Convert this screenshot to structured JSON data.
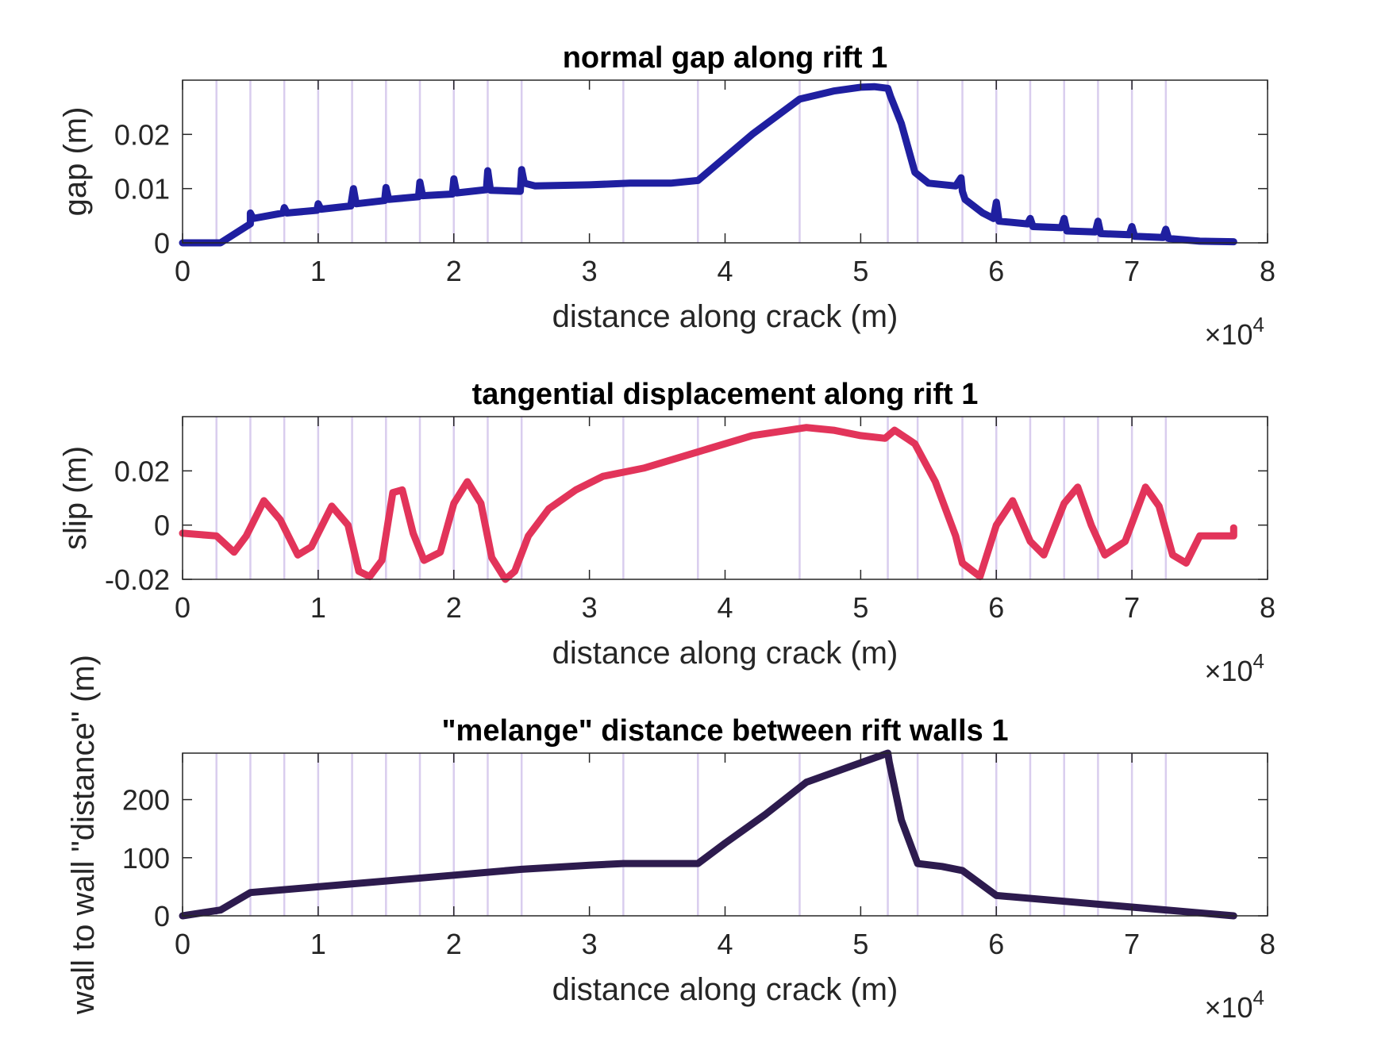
{
  "chart_data": [
    {
      "type": "line",
      "title": "normal gap along rift 1",
      "xlabel": "distance along crack (m)",
      "ylabel": "gap (m)",
      "x_exponent": "×10",
      "x_exponent_power": "4",
      "xlim": [
        0,
        8
      ],
      "ylim": [
        0,
        0.03
      ],
      "xticks": [
        0,
        1,
        2,
        3,
        4,
        5,
        6,
        7,
        8
      ],
      "xtick_labels": [
        "0",
        "1",
        "2",
        "3",
        "4",
        "5",
        "6",
        "7",
        "8"
      ],
      "yticks": [
        0,
        0.01,
        0.02
      ],
      "ytick_labels": [
        "0",
        "0.01",
        "0.02"
      ],
      "vertical_lines": [
        0.25,
        0.5,
        0.75,
        1.0,
        1.25,
        1.5,
        1.75,
        2.0,
        2.25,
        2.5,
        3.25,
        3.8,
        4.55,
        5.2,
        5.42,
        5.75,
        6.0,
        6.25,
        6.5,
        6.75,
        7.0,
        7.25
      ],
      "series": [
        {
          "color": "#1f1fa0",
          "x": [
            0,
            0.28,
            0.5,
            0.5,
            0.52,
            0.74,
            0.75,
            0.77,
            0.99,
            1.0,
            1.02,
            1.24,
            1.26,
            1.28,
            1.49,
            1.5,
            1.52,
            1.74,
            1.75,
            1.77,
            1.99,
            2.0,
            2.02,
            2.24,
            2.25,
            2.27,
            2.49,
            2.5,
            2.52,
            2.6,
            3.0,
            3.3,
            3.6,
            3.8,
            4.2,
            4.55,
            4.8,
            5.0,
            5.1,
            5.2,
            5.22,
            5.3,
            5.4,
            5.5,
            5.7,
            5.74,
            5.75,
            5.77,
            5.9,
            5.98,
            6.0,
            6.02,
            6.23,
            6.25,
            6.27,
            6.48,
            6.5,
            6.52,
            6.73,
            6.75,
            6.77,
            6.98,
            7.0,
            7.02,
            7.23,
            7.25,
            7.27,
            7.5,
            7.75
          ],
          "values": [
            0,
            0,
            0.0035,
            0.0055,
            0.0045,
            0.0055,
            0.0065,
            0.0055,
            0.006,
            0.0072,
            0.0062,
            0.0068,
            0.01,
            0.0072,
            0.0078,
            0.0102,
            0.008,
            0.0085,
            0.0112,
            0.0087,
            0.009,
            0.0118,
            0.0092,
            0.0098,
            0.0133,
            0.0097,
            0.0095,
            0.0135,
            0.011,
            0.0105,
            0.0107,
            0.011,
            0.011,
            0.0115,
            0.02,
            0.0265,
            0.028,
            0.0287,
            0.0288,
            0.0285,
            0.027,
            0.022,
            0.013,
            0.011,
            0.0105,
            0.012,
            0.0095,
            0.008,
            0.0055,
            0.0045,
            0.0075,
            0.004,
            0.0035,
            0.0045,
            0.003,
            0.0028,
            0.0045,
            0.0022,
            0.002,
            0.004,
            0.0017,
            0.0015,
            0.003,
            0.0012,
            0.001,
            0.0025,
            0.0008,
            0.0003,
            0.0002
          ]
        }
      ]
    },
    {
      "type": "line",
      "title": "tangential displacement along rift 1",
      "xlabel": "distance along crack (m)",
      "ylabel": "slip (m)",
      "x_exponent": "×10",
      "x_exponent_power": "4",
      "xlim": [
        0,
        8
      ],
      "ylim": [
        -0.02,
        0.04
      ],
      "xticks": [
        0,
        1,
        2,
        3,
        4,
        5,
        6,
        7,
        8
      ],
      "xtick_labels": [
        "0",
        "1",
        "2",
        "3",
        "4",
        "5",
        "6",
        "7",
        "8"
      ],
      "yticks": [
        -0.02,
        0,
        0.02
      ],
      "ytick_labels": [
        "-0.02",
        "0",
        "0.02"
      ],
      "vertical_lines": [
        0.25,
        0.5,
        0.75,
        1.0,
        1.25,
        1.5,
        1.75,
        2.0,
        2.25,
        2.5,
        3.25,
        3.8,
        4.55,
        5.2,
        5.42,
        5.75,
        6.0,
        6.25,
        6.5,
        6.75,
        7.0,
        7.25
      ],
      "series": [
        {
          "color": "#e2345a",
          "x": [
            0,
            0.25,
            0.38,
            0.47,
            0.6,
            0.72,
            0.85,
            0.95,
            1.1,
            1.22,
            1.3,
            1.38,
            1.47,
            1.55,
            1.62,
            1.7,
            1.78,
            1.9,
            2.0,
            2.1,
            2.2,
            2.28,
            2.38,
            2.45,
            2.55,
            2.7,
            2.9,
            3.1,
            3.4,
            3.8,
            4.2,
            4.6,
            4.8,
            5.0,
            5.18,
            5.25,
            5.4,
            5.55,
            5.7,
            5.75,
            5.88,
            6.0,
            6.12,
            6.25,
            6.35,
            6.5,
            6.6,
            6.7,
            6.8,
            6.95,
            7.1,
            7.2,
            7.3,
            7.4,
            7.5,
            7.75,
            7.75
          ],
          "values": [
            -0.003,
            -0.004,
            -0.01,
            -0.004,
            0.009,
            0.002,
            -0.011,
            -0.008,
            0.007,
            0.0,
            -0.017,
            -0.019,
            -0.013,
            0.012,
            0.013,
            -0.003,
            -0.013,
            -0.01,
            0.008,
            0.016,
            0.008,
            -0.012,
            -0.02,
            -0.017,
            -0.004,
            0.006,
            0.013,
            0.018,
            0.021,
            0.027,
            0.033,
            0.036,
            0.035,
            0.033,
            0.032,
            0.035,
            0.03,
            0.016,
            -0.004,
            -0.014,
            -0.019,
            0.0,
            0.009,
            -0.006,
            -0.011,
            0.008,
            0.014,
            0.0,
            -0.011,
            -0.006,
            0.014,
            0.007,
            -0.011,
            -0.014,
            -0.004,
            -0.004,
            -0.001
          ]
        }
      ]
    },
    {
      "type": "line",
      "title": "\"melange\" distance between rift walls 1",
      "xlabel": "distance along crack (m)",
      "ylabel": "wall to wall \"distance\" (m)",
      "x_exponent": "×10",
      "x_exponent_power": "4",
      "xlim": [
        0,
        8
      ],
      "ylim": [
        0,
        280
      ],
      "xticks": [
        0,
        1,
        2,
        3,
        4,
        5,
        6,
        7,
        8
      ],
      "xtick_labels": [
        "0",
        "1",
        "2",
        "3",
        "4",
        "5",
        "6",
        "7",
        "8"
      ],
      "yticks": [
        0,
        100,
        200
      ],
      "ytick_labels": [
        "0",
        "100",
        "200"
      ],
      "vertical_lines": [
        0.25,
        0.5,
        0.75,
        1.0,
        1.25,
        1.5,
        1.75,
        2.0,
        2.25,
        2.5,
        3.25,
        3.8,
        4.55,
        5.2,
        5.42,
        5.75,
        6.0,
        6.25,
        6.5,
        6.75,
        7.0,
        7.25
      ],
      "series": [
        {
          "color": "#2d1b4e",
          "x": [
            0,
            0.28,
            0.5,
            1.0,
            1.5,
            2.0,
            2.5,
            3.0,
            3.25,
            3.8,
            4.0,
            4.3,
            4.6,
            4.9,
            5.2,
            5.21,
            5.3,
            5.42,
            5.6,
            5.75,
            6.0,
            6.5,
            7.0,
            7.5,
            7.75
          ],
          "values": [
            0,
            10,
            40,
            50,
            60,
            70,
            80,
            87,
            90,
            90,
            125,
            175,
            230,
            255,
            280,
            265,
            165,
            90,
            85,
            78,
            35,
            25,
            15,
            5,
            0
          ]
        }
      ]
    }
  ]
}
